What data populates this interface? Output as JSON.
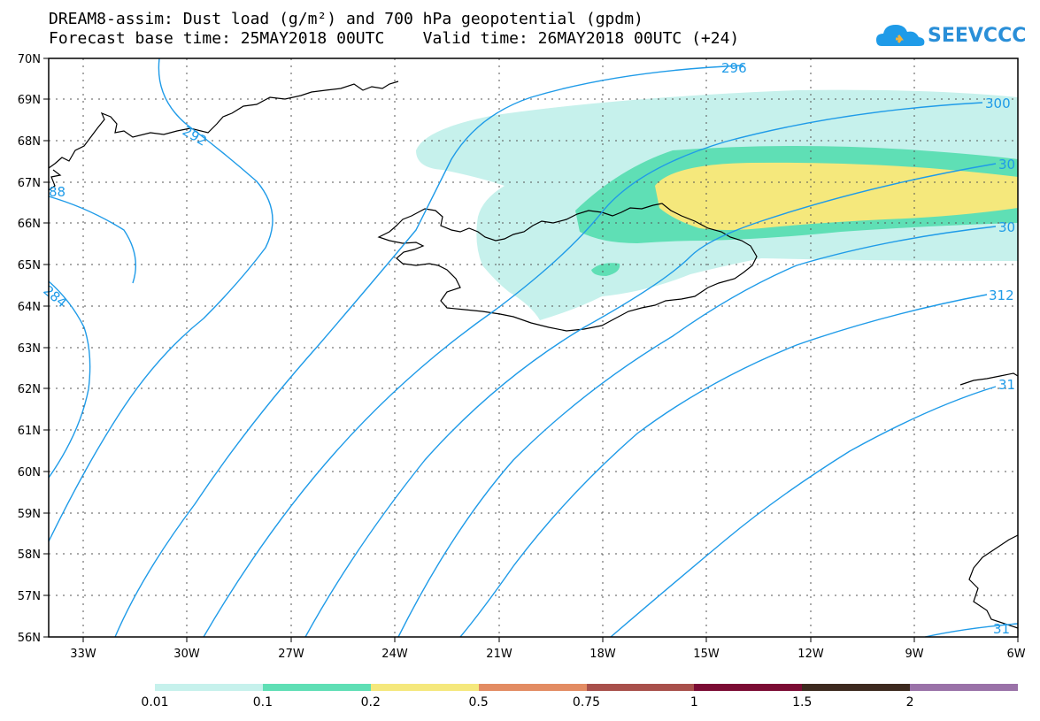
{
  "title": {
    "line1": "DREAM8-assim: Dust load (g/m²) and 700 hPa geopotential (gpdm)",
    "line2": "Forecast base time: 25MAY2018 00UTC    Valid time: 26MAY2018 00UTC (+24)"
  },
  "logo": {
    "text": "SEEVCCC",
    "icon": "cloud-icon",
    "color": "#1f9be8"
  },
  "axes": {
    "lat_labels": [
      "70N",
      "69N",
      "68N",
      "67N",
      "66N",
      "65N",
      "64N",
      "63N",
      "62N",
      "61N",
      "60N",
      "59N",
      "58N",
      "57N",
      "56N"
    ],
    "lon_labels": [
      "33W",
      "30W",
      "27W",
      "24W",
      "21W",
      "18W",
      "15W",
      "12W",
      "9W",
      "6W"
    ]
  },
  "contours": {
    "color": "#1f9be8",
    "labels": [
      "292",
      "296",
      "300",
      "30",
      "30",
      "312",
      "284",
      "31",
      "31",
      "88"
    ]
  },
  "dust_colors": {
    "c001": "#c6f1ec",
    "c01": "#5fdfb5",
    "c02": "#f5e87c",
    "c05": "#e38c63",
    "c075": "#a8504b",
    "c1": "#7b0c34",
    "c15": "#3d2a1f",
    "c2": "#9a72a8"
  },
  "legend": {
    "colors": [
      "#c6f1ec",
      "#5fdfb5",
      "#f5e87c",
      "#e38c63",
      "#a8504b",
      "#7b0c34",
      "#3d2a1f",
      "#9a72a8"
    ],
    "labels": [
      "0.01",
      "0.1",
      "0.2",
      "0.5",
      "0.75",
      "1",
      "1.5",
      "2"
    ]
  }
}
